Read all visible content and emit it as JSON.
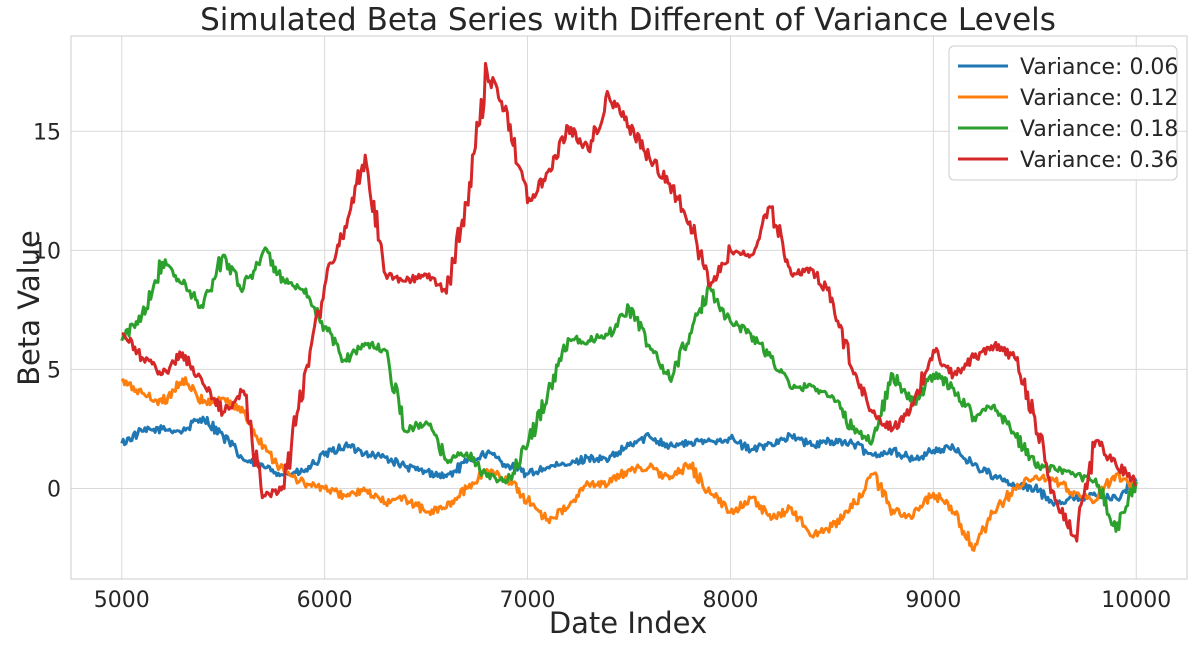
{
  "chart_data": {
    "type": "line",
    "title": "Simulated Beta Series with Different of Variance Levels",
    "xlabel": "Date Index",
    "ylabel": "Beta Value",
    "xlim": [
      4750,
      10250
    ],
    "ylim": [
      -3.8,
      19.0
    ],
    "xticks": [
      5000,
      6000,
      7000,
      8000,
      9000,
      10000
    ],
    "yticks": [
      0,
      5,
      10,
      15
    ],
    "grid": true,
    "legend_position": "top-right",
    "series": [
      {
        "name": "Variance: 0.06",
        "color": "#1f77b4",
        "x": [
          5000,
          5100,
          5200,
          5300,
          5400,
          5500,
          5600,
          5700,
          5800,
          5900,
          6000,
          6100,
          6200,
          6300,
          6400,
          6500,
          6600,
          6700,
          6800,
          6900,
          7000,
          7100,
          7200,
          7300,
          7400,
          7500,
          7600,
          7700,
          7800,
          7900,
          8000,
          8100,
          8200,
          8300,
          8400,
          8500,
          8600,
          8700,
          8800,
          8900,
          9000,
          9100,
          9200,
          9300,
          9400,
          9500,
          9600,
          9700,
          9800,
          9900,
          10000
        ],
        "y": [
          1.9,
          2.4,
          2.5,
          2.4,
          3.0,
          2.2,
          1.2,
          0.9,
          0.6,
          0.7,
          1.4,
          1.8,
          1.5,
          1.3,
          0.9,
          0.7,
          0.5,
          1.1,
          1.5,
          1.0,
          0.6,
          0.9,
          1.0,
          1.3,
          1.2,
          1.8,
          2.2,
          1.8,
          1.9,
          2.0,
          2.1,
          1.6,
          1.9,
          2.2,
          1.8,
          2.0,
          1.9,
          1.4,
          1.6,
          1.2,
          1.6,
          1.7,
          1.0,
          0.5,
          0.1,
          0.0,
          -0.6,
          -0.4,
          -0.3,
          -0.4,
          0.3
        ]
      },
      {
        "name": "Variance: 0.12",
        "color": "#ff7f0e",
        "x": [
          5000,
          5100,
          5200,
          5300,
          5400,
          5500,
          5600,
          5700,
          5800,
          5900,
          6000,
          6100,
          6200,
          6300,
          6400,
          6500,
          6600,
          6700,
          6800,
          6900,
          7000,
          7100,
          7200,
          7300,
          7400,
          7500,
          7600,
          7700,
          7800,
          7900,
          8000,
          8100,
          8200,
          8300,
          8400,
          8500,
          8600,
          8700,
          8800,
          8900,
          9000,
          9100,
          9200,
          9300,
          9400,
          9500,
          9600,
          9700,
          9800,
          9900,
          10000
        ],
        "y": [
          4.5,
          4.0,
          3.6,
          4.6,
          3.6,
          3.8,
          3.2,
          1.8,
          0.7,
          0.2,
          0.0,
          -0.3,
          -0.1,
          -0.6,
          -0.4,
          -1.0,
          -0.8,
          0.0,
          0.8,
          0.4,
          -0.5,
          -1.3,
          -0.8,
          0.2,
          0.2,
          0.8,
          0.9,
          0.4,
          1.0,
          -0.2,
          -1.0,
          -0.4,
          -1.3,
          -0.8,
          -2.0,
          -1.6,
          -0.8,
          0.6,
          -0.9,
          -1.2,
          -0.2,
          -1.0,
          -2.6,
          -1.0,
          0.0,
          0.5,
          0.3,
          -0.2,
          -0.5,
          0.6,
          0.0
        ]
      },
      {
        "name": "Variance: 0.18",
        "color": "#2ca02c",
        "x": [
          5000,
          5100,
          5200,
          5300,
          5400,
          5500,
          5600,
          5700,
          5800,
          5900,
          6000,
          6100,
          6200,
          6300,
          6400,
          6500,
          6600,
          6700,
          6800,
          6900,
          7000,
          7100,
          7200,
          7300,
          7400,
          7500,
          7600,
          7700,
          7800,
          7900,
          8000,
          8100,
          8200,
          8300,
          8400,
          8500,
          8600,
          8700,
          8800,
          8900,
          9000,
          9100,
          9200,
          9300,
          9400,
          9500,
          9600,
          9700,
          9800,
          9900,
          10000
        ],
        "y": [
          6.2,
          7.3,
          9.5,
          8.6,
          7.6,
          9.8,
          8.4,
          10.0,
          8.7,
          8.2,
          6.8,
          5.4,
          6.1,
          5.8,
          2.4,
          2.8,
          1.2,
          1.5,
          0.5,
          0.3,
          1.8,
          4.0,
          6.3,
          6.2,
          6.5,
          7.6,
          6.0,
          4.6,
          6.5,
          8.4,
          7.0,
          6.5,
          5.5,
          4.2,
          4.3,
          3.9,
          2.5,
          2.0,
          4.8,
          3.5,
          4.8,
          4.2,
          3.0,
          3.5,
          2.3,
          1.0,
          0.8,
          0.5,
          0.4,
          -1.8,
          0.3
        ]
      },
      {
        "name": "Variance: 0.36",
        "color": "#d62728",
        "x": [
          5000,
          5100,
          5200,
          5300,
          5400,
          5500,
          5600,
          5700,
          5800,
          5900,
          6000,
          6100,
          6200,
          6300,
          6400,
          6500,
          6600,
          6700,
          6800,
          6900,
          7000,
          7100,
          7200,
          7300,
          7400,
          7500,
          7600,
          7700,
          7800,
          7900,
          8000,
          8100,
          8200,
          8300,
          8400,
          8500,
          8600,
          8700,
          8800,
          8900,
          9000,
          9100,
          9200,
          9300,
          9400,
          9500,
          9600,
          9700,
          9800,
          9900,
          10000
        ],
        "y": [
          6.5,
          5.5,
          4.8,
          5.7,
          4.4,
          3.2,
          4.1,
          -0.3,
          0.0,
          4.8,
          8.5,
          11.0,
          14.0,
          9.0,
          8.7,
          9.0,
          8.2,
          12.0,
          17.5,
          15.8,
          12.0,
          13.3,
          15.2,
          14.2,
          16.5,
          15.2,
          13.9,
          12.8,
          11.2,
          8.5,
          10.0,
          9.8,
          11.8,
          9.0,
          9.2,
          8.0,
          5.0,
          3.2,
          2.5,
          3.5,
          5.8,
          4.8,
          5.5,
          6.0,
          5.5,
          3.0,
          -0.5,
          -2.0,
          2.0,
          1.0,
          0.2
        ]
      }
    ]
  }
}
